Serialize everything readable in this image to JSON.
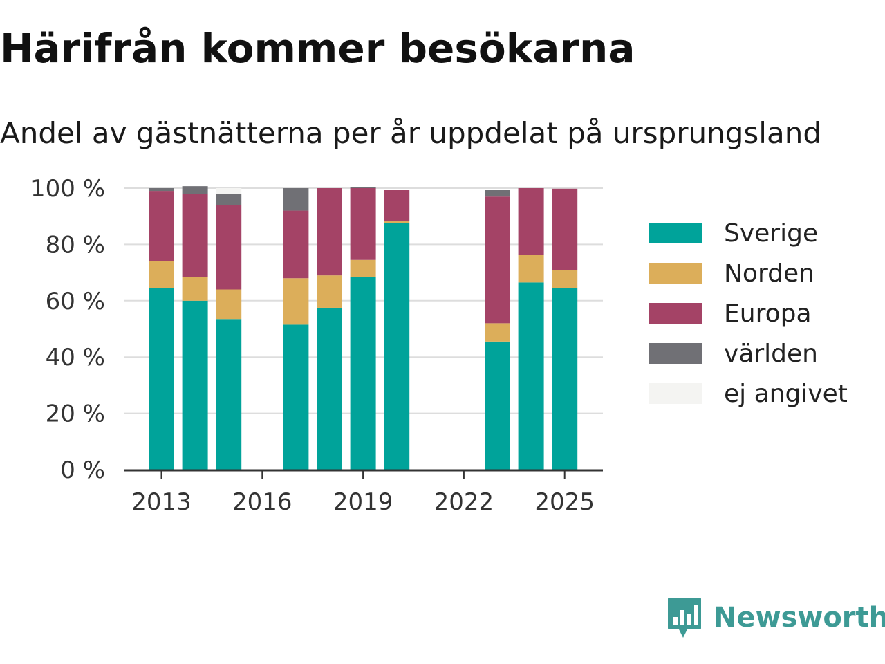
{
  "title": "Härifrån kommer besökarna",
  "subtitle": "Andel av gästnätterna per år uppdelat på ursprungsland",
  "brand": {
    "name": "Newsworthy",
    "color": "#3d9a95",
    "icon": "chart-speech-bubble-icon"
  },
  "chart_data": {
    "type": "bar",
    "stacked": true,
    "categories": [
      "2013",
      "2014",
      "2015",
      "2016",
      "2017",
      "2018",
      "2019",
      "2020",
      "2021",
      "2022",
      "2023",
      "2024",
      "2025"
    ],
    "series": [
      {
        "name": "Sverige",
        "color": "#00a39a",
        "values": [
          64.5,
          60,
          53.5,
          null,
          51.5,
          57.5,
          68.5,
          87.5,
          null,
          null,
          45.5,
          66.5,
          64.5
        ]
      },
      {
        "name": "Norden",
        "color": "#dcae5a",
        "values": [
          9.5,
          8.5,
          10.5,
          null,
          16.5,
          11.5,
          6,
          0.7,
          null,
          null,
          6.5,
          9.8,
          6.5
        ]
      },
      {
        "name": "Europa",
        "color": "#a44366",
        "values": [
          25,
          29.5,
          30,
          null,
          24,
          31,
          25.5,
          11.3,
          null,
          null,
          45,
          23.7,
          28.8
        ]
      },
      {
        "name": "världen",
        "color": "#707075",
        "values": [
          1,
          2.7,
          4,
          null,
          8,
          0,
          0.3,
          0,
          null,
          null,
          2.5,
          0,
          0
        ]
      },
      {
        "name": "ej angivet",
        "color": "#f4f4f2",
        "values": [
          0,
          0,
          2,
          null,
          0,
          0,
          0,
          0,
          null,
          null,
          0,
          0,
          0
        ]
      }
    ],
    "ylim": [
      0,
      100
    ],
    "yticks": [
      "0 %",
      "20 %",
      "40 %",
      "60 %",
      "80 %",
      "100 %"
    ],
    "xticks": [
      "2013",
      "2016",
      "2019",
      "2022",
      "2025"
    ],
    "grid": true,
    "legend": "right"
  }
}
